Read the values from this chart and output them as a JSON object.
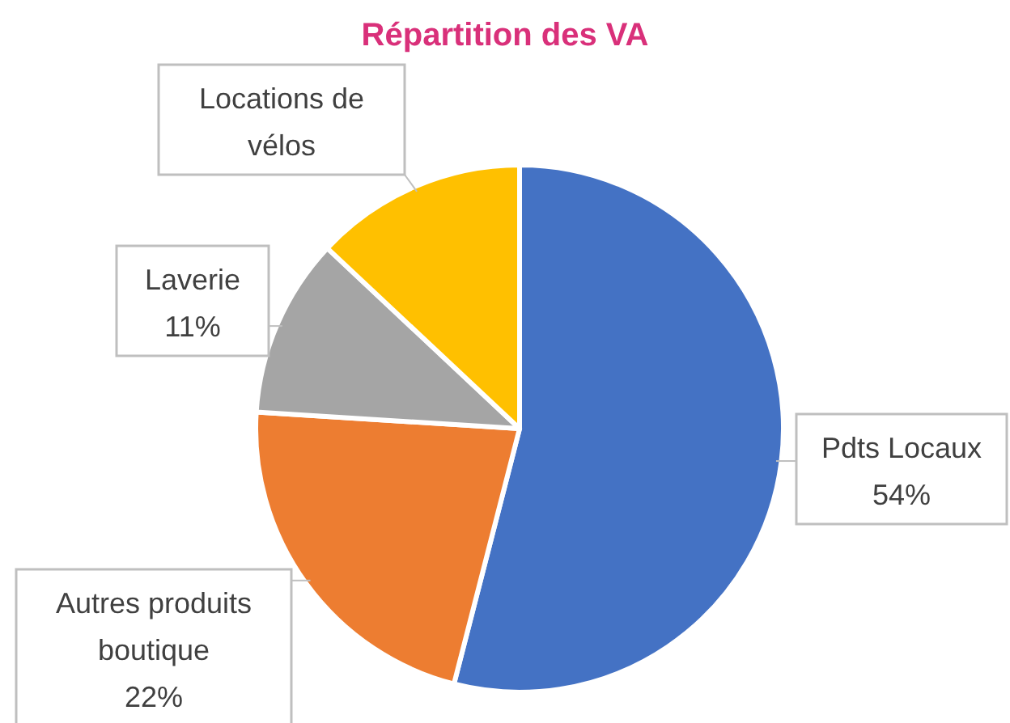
{
  "chart_data": {
    "type": "pie",
    "title": "Répartition des VA",
    "categories": [
      "Pdts Locaux",
      "Autres produits boutique",
      "Laverie",
      "Locations de vélos"
    ],
    "values": [
      54,
      22,
      11,
      13
    ],
    "colors": [
      "#4472c4",
      "#ed7d31",
      "#a5a5a5",
      "#ffc000"
    ],
    "value_labels": [
      "54%",
      "22%",
      "11%",
      null
    ]
  }
}
